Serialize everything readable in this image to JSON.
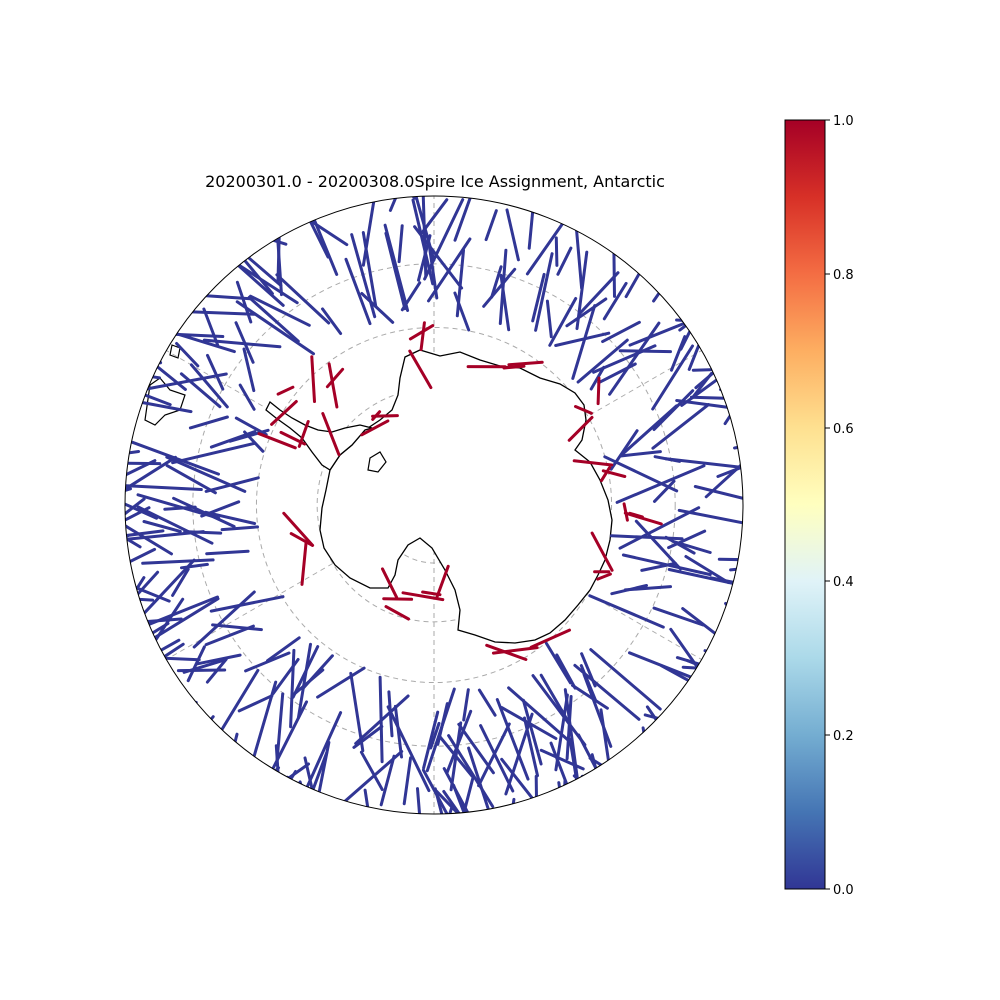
{
  "title": "20200301.0 - 20200308.0Spire Ice Assignment, Antarctic",
  "colorbar": {
    "ticks": [
      "0.0",
      "0.2",
      "0.4",
      "0.6",
      "0.8",
      "1.0"
    ],
    "range": [
      0,
      1
    ],
    "colormap": "RdYlBu_r",
    "stops": [
      "#313695",
      "#4575b4",
      "#74add1",
      "#abd9e9",
      "#e0f3f8",
      "#ffffbf",
      "#fee090",
      "#fdae61",
      "#f46d43",
      "#d73027",
      "#a50026"
    ]
  },
  "map": {
    "projection": "south-polar-stereographic",
    "boundary_latitude": -40,
    "gridline_latitudes": [
      -80,
      -70,
      -60,
      -50
    ],
    "gridline_longitudes": [
      0,
      60,
      120,
      180,
      240,
      300
    ],
    "ocean_track_color": "#313695",
    "ice_track_color": "#a50026"
  },
  "chart_data": {
    "type": "scatter",
    "title": "20200301.0 - 20200308.0Spire Ice Assignment, Antarctic",
    "xlabel": "",
    "ylabel": "",
    "value_name": "ice assignment",
    "value_range": [
      0,
      1
    ],
    "classes": [
      {
        "value": 0.0,
        "count": 330
      },
      {
        "value": 1.0,
        "count": 42
      }
    ]
  }
}
